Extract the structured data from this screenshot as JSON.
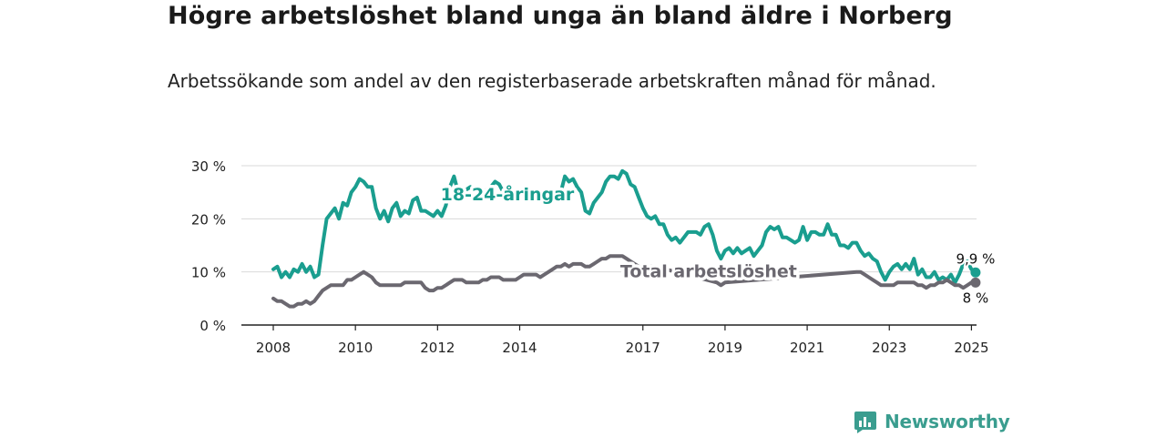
{
  "title": "Högre arbetslöshet bland unga än bland äldre i Norberg",
  "subtitle": "Arbetssökande som andel av den registerbaserade arbetskraften månad för månad.",
  "brand": "Newsworthy",
  "colors": {
    "youth": "#1a9e8f",
    "total": "#6b6870",
    "grid": "#d9d9d9",
    "axis": "#222222"
  },
  "chart_data": {
    "type": "line",
    "ylim": [
      0,
      30
    ],
    "xlim": [
      2008,
      2025.9
    ],
    "y_ticks": [
      {
        "v": 0,
        "label": "0 %"
      },
      {
        "v": 10,
        "label": "10 %"
      },
      {
        "v": 20,
        "label": "20 %"
      },
      {
        "v": 30,
        "label": "30 %"
      }
    ],
    "x_ticks": [
      {
        "v": 2008,
        "label": "2008"
      },
      {
        "v": 2010,
        "label": "2010"
      },
      {
        "v": 2012,
        "label": "2012"
      },
      {
        "v": 2014,
        "label": "2014"
      },
      {
        "v": 2017,
        "label": "2017"
      },
      {
        "v": 2019,
        "label": "2019"
      },
      {
        "v": 2021,
        "label": "2021"
      },
      {
        "v": 2023,
        "label": "2023"
      },
      {
        "v": 2025,
        "label": "2025"
      }
    ],
    "series": [
      {
        "name": "18-24-åringar",
        "color": "#1a9e8f",
        "points": [
          [
            2008.0,
            10.5
          ],
          [
            2008.1,
            11.0
          ],
          [
            2008.2,
            9.0
          ],
          [
            2008.3,
            10.0
          ],
          [
            2008.4,
            9.0
          ],
          [
            2008.5,
            10.5
          ],
          [
            2008.6,
            10.0
          ],
          [
            2008.7,
            11.5
          ],
          [
            2008.8,
            10.0
          ],
          [
            2008.9,
            11.0
          ],
          [
            2009.0,
            9.0
          ],
          [
            2009.1,
            9.5
          ],
          [
            2009.2,
            15.0
          ],
          [
            2009.3,
            20.0
          ],
          [
            2009.4,
            21.0
          ],
          [
            2009.5,
            22.0
          ],
          [
            2009.6,
            20.0
          ],
          [
            2009.7,
            23.0
          ],
          [
            2009.8,
            22.5
          ],
          [
            2009.9,
            25.0
          ],
          [
            2010.0,
            26.0
          ],
          [
            2010.1,
            27.5
          ],
          [
            2010.2,
            27.0
          ],
          [
            2010.3,
            26.0
          ],
          [
            2010.4,
            26.0
          ],
          [
            2010.5,
            22.0
          ],
          [
            2010.6,
            20.0
          ],
          [
            2010.7,
            21.5
          ],
          [
            2010.8,
            19.5
          ],
          [
            2010.9,
            22.0
          ],
          [
            2011.0,
            23.0
          ],
          [
            2011.1,
            20.5
          ],
          [
            2011.2,
            21.5
          ],
          [
            2011.3,
            21.0
          ],
          [
            2011.4,
            23.5
          ],
          [
            2011.5,
            24.0
          ],
          [
            2011.6,
            21.5
          ],
          [
            2011.7,
            21.5
          ],
          [
            2011.8,
            21.0
          ],
          [
            2011.9,
            20.5
          ],
          [
            2012.0,
            21.5
          ],
          [
            2012.1,
            20.5
          ],
          [
            2012.2,
            22.5
          ],
          [
            2012.3,
            26.0
          ],
          [
            2012.4,
            28.0
          ],
          [
            2012.5,
            25.0
          ],
          [
            2012.6,
            24.5
          ],
          [
            2012.7,
            25.5
          ],
          [
            2012.8,
            26.0
          ],
          [
            2012.9,
            25.0
          ],
          [
            2013.0,
            24.0
          ],
          [
            2013.1,
            24.5
          ],
          [
            2013.2,
            25.5
          ],
          [
            2013.3,
            26.0
          ],
          [
            2013.4,
            27.0
          ],
          [
            2013.5,
            26.5
          ],
          [
            2013.6,
            25.0
          ],
          [
            2013.7,
            24.0
          ],
          [
            2013.8,
            23.5
          ],
          [
            2013.9,
            24.0
          ],
          [
            2014.0,
            23.5
          ],
          [
            2014.2,
            24.0
          ],
          [
            2014.4,
            24.5
          ],
          [
            2014.6,
            24.0
          ],
          [
            2014.8,
            23.5
          ],
          [
            2015.0,
            25.0
          ],
          [
            2015.1,
            28.0
          ],
          [
            2015.2,
            27.0
          ],
          [
            2015.3,
            27.5
          ],
          [
            2015.4,
            26.0
          ],
          [
            2015.5,
            25.0
          ],
          [
            2015.6,
            21.5
          ],
          [
            2015.7,
            21.0
          ],
          [
            2015.8,
            23.0
          ],
          [
            2016.0,
            25.0
          ],
          [
            2016.1,
            27.0
          ],
          [
            2016.2,
            28.0
          ],
          [
            2016.3,
            28.0
          ],
          [
            2016.4,
            27.5
          ],
          [
            2016.5,
            29.0
          ],
          [
            2016.6,
            28.5
          ],
          [
            2016.7,
            26.5
          ],
          [
            2016.8,
            26.0
          ],
          [
            2016.9,
            24.0
          ],
          [
            2017.0,
            22.0
          ],
          [
            2017.1,
            20.5
          ],
          [
            2017.2,
            20.0
          ],
          [
            2017.3,
            20.5
          ],
          [
            2017.4,
            19.0
          ],
          [
            2017.5,
            19.0
          ],
          [
            2017.6,
            17.0
          ],
          [
            2017.7,
            16.0
          ],
          [
            2017.8,
            16.5
          ],
          [
            2017.9,
            15.5
          ],
          [
            2018.0,
            16.5
          ],
          [
            2018.1,
            17.5
          ],
          [
            2018.2,
            17.5
          ],
          [
            2018.3,
            17.5
          ],
          [
            2018.4,
            17.0
          ],
          [
            2018.5,
            18.5
          ],
          [
            2018.6,
            19.0
          ],
          [
            2018.7,
            17.0
          ],
          [
            2018.8,
            14.0
          ],
          [
            2018.9,
            12.5
          ],
          [
            2019.0,
            14.0
          ],
          [
            2019.1,
            14.5
          ],
          [
            2019.2,
            13.5
          ],
          [
            2019.3,
            14.5
          ],
          [
            2019.4,
            13.5
          ],
          [
            2019.5,
            14.0
          ],
          [
            2019.6,
            14.5
          ],
          [
            2019.7,
            13.0
          ],
          [
            2019.8,
            14.0
          ],
          [
            2019.9,
            15.0
          ],
          [
            2020.0,
            17.5
          ],
          [
            2020.1,
            18.5
          ],
          [
            2020.2,
            18.0
          ],
          [
            2020.3,
            18.5
          ],
          [
            2020.4,
            16.5
          ],
          [
            2020.5,
            16.5
          ],
          [
            2020.6,
            16.0
          ],
          [
            2020.7,
            15.5
          ],
          [
            2020.8,
            16.0
          ],
          [
            2020.9,
            18.5
          ],
          [
            2021.0,
            16.0
          ],
          [
            2021.1,
            17.5
          ],
          [
            2021.2,
            17.5
          ],
          [
            2021.3,
            17.0
          ],
          [
            2021.4,
            17.0
          ],
          [
            2021.5,
            19.0
          ],
          [
            2021.6,
            17.0
          ],
          [
            2021.7,
            17.0
          ],
          [
            2021.8,
            15.0
          ],
          [
            2021.9,
            15.0
          ],
          [
            2022.0,
            14.5
          ],
          [
            2022.1,
            15.5
          ],
          [
            2022.2,
            15.5
          ],
          [
            2022.3,
            14.0
          ],
          [
            2022.4,
            13.0
          ],
          [
            2022.5,
            13.5
          ],
          [
            2022.6,
            12.5
          ],
          [
            2022.7,
            12.0
          ],
          [
            2022.8,
            10.0
          ],
          [
            2022.9,
            8.5
          ],
          [
            2023.0,
            10.0
          ],
          [
            2023.1,
            11.0
          ],
          [
            2023.2,
            11.5
          ],
          [
            2023.3,
            10.5
          ],
          [
            2023.4,
            11.5
          ],
          [
            2023.5,
            10.5
          ],
          [
            2023.6,
            12.5
          ],
          [
            2023.7,
            9.5
          ],
          [
            2023.8,
            10.5
          ],
          [
            2023.9,
            9.0
          ],
          [
            2024.0,
            9.0
          ],
          [
            2024.1,
            10.0
          ],
          [
            2024.2,
            8.5
          ],
          [
            2024.3,
            9.0
          ],
          [
            2024.4,
            8.5
          ],
          [
            2024.5,
            9.5
          ],
          [
            2024.6,
            8.0
          ],
          [
            2024.7,
            9.5
          ],
          [
            2024.8,
            11.5
          ],
          [
            2024.9,
            12.0
          ],
          [
            2025.0,
            10.5
          ],
          [
            2025.1,
            9.9
          ]
        ],
        "end_label": "9,9 %",
        "label_at": [
          2013.7,
          24.5
        ]
      },
      {
        "name": "Total arbetslöshet",
        "color": "#6b6870",
        "points": [
          [
            2008.0,
            5.0
          ],
          [
            2008.1,
            4.5
          ],
          [
            2008.2,
            4.5
          ],
          [
            2008.3,
            4.0
          ],
          [
            2008.4,
            3.5
          ],
          [
            2008.5,
            3.5
          ],
          [
            2008.6,
            4.0
          ],
          [
            2008.7,
            4.0
          ],
          [
            2008.8,
            4.5
          ],
          [
            2008.9,
            4.0
          ],
          [
            2009.0,
            4.5
          ],
          [
            2009.1,
            5.5
          ],
          [
            2009.2,
            6.5
          ],
          [
            2009.3,
            7.0
          ],
          [
            2009.4,
            7.5
          ],
          [
            2009.5,
            7.5
          ],
          [
            2009.6,
            7.5
          ],
          [
            2009.7,
            7.5
          ],
          [
            2009.8,
            8.5
          ],
          [
            2009.9,
            8.5
          ],
          [
            2010.0,
            9.0
          ],
          [
            2010.1,
            9.5
          ],
          [
            2010.2,
            10.0
          ],
          [
            2010.3,
            9.5
          ],
          [
            2010.4,
            9.0
          ],
          [
            2010.5,
            8.0
          ],
          [
            2010.6,
            7.5
          ],
          [
            2010.7,
            7.5
          ],
          [
            2010.8,
            7.5
          ],
          [
            2010.9,
            7.5
          ],
          [
            2011.0,
            7.5
          ],
          [
            2011.1,
            7.5
          ],
          [
            2011.2,
            8.0
          ],
          [
            2011.3,
            8.0
          ],
          [
            2011.4,
            8.0
          ],
          [
            2011.5,
            8.0
          ],
          [
            2011.6,
            8.0
          ],
          [
            2011.7,
            7.0
          ],
          [
            2011.8,
            6.5
          ],
          [
            2011.9,
            6.5
          ],
          [
            2012.0,
            7.0
          ],
          [
            2012.1,
            7.0
          ],
          [
            2012.2,
            7.5
          ],
          [
            2012.3,
            8.0
          ],
          [
            2012.4,
            8.5
          ],
          [
            2012.5,
            8.5
          ],
          [
            2012.6,
            8.5
          ],
          [
            2012.7,
            8.0
          ],
          [
            2012.8,
            8.0
          ],
          [
            2012.9,
            8.0
          ],
          [
            2013.0,
            8.0
          ],
          [
            2013.1,
            8.5
          ],
          [
            2013.2,
            8.5
          ],
          [
            2013.3,
            9.0
          ],
          [
            2013.4,
            9.0
          ],
          [
            2013.5,
            9.0
          ],
          [
            2013.6,
            8.5
          ],
          [
            2013.7,
            8.5
          ],
          [
            2013.8,
            8.5
          ],
          [
            2013.9,
            8.5
          ],
          [
            2014.0,
            9.0
          ],
          [
            2014.1,
            9.5
          ],
          [
            2014.2,
            9.5
          ],
          [
            2014.3,
            9.5
          ],
          [
            2014.4,
            9.5
          ],
          [
            2014.5,
            9.0
          ],
          [
            2014.6,
            9.5
          ],
          [
            2014.7,
            10.0
          ],
          [
            2014.8,
            10.5
          ],
          [
            2014.9,
            11.0
          ],
          [
            2015.0,
            11.0
          ],
          [
            2015.1,
            11.5
          ],
          [
            2015.2,
            11.0
          ],
          [
            2015.3,
            11.5
          ],
          [
            2015.4,
            11.5
          ],
          [
            2015.5,
            11.5
          ],
          [
            2015.6,
            11.0
          ],
          [
            2015.7,
            11.0
          ],
          [
            2015.8,
            11.5
          ],
          [
            2015.9,
            12.0
          ],
          [
            2016.0,
            12.5
          ],
          [
            2016.1,
            12.5
          ],
          [
            2016.2,
            13.0
          ],
          [
            2016.3,
            13.0
          ],
          [
            2016.4,
            13.0
          ],
          [
            2016.5,
            13.0
          ],
          [
            2016.6,
            12.5
          ],
          [
            2016.7,
            12.0
          ],
          [
            2016.8,
            11.5
          ],
          [
            2016.9,
            11.0
          ],
          [
            2017.0,
            10.5
          ],
          [
            2017.1,
            10.5
          ],
          [
            2017.2,
            11.0
          ],
          [
            2017.3,
            11.0
          ],
          [
            2018.8,
            8.0
          ],
          [
            2018.9,
            7.5
          ],
          [
            2019.0,
            8.0
          ],
          [
            2022.2,
            10.0
          ],
          [
            2022.3,
            10.0
          ],
          [
            2022.4,
            9.5
          ],
          [
            2022.5,
            9.0
          ],
          [
            2022.6,
            8.5
          ],
          [
            2022.7,
            8.0
          ],
          [
            2022.8,
            7.5
          ],
          [
            2022.9,
            7.5
          ],
          [
            2023.0,
            7.5
          ],
          [
            2023.1,
            7.5
          ],
          [
            2023.2,
            8.0
          ],
          [
            2023.3,
            8.0
          ],
          [
            2023.4,
            8.0
          ],
          [
            2023.5,
            8.0
          ],
          [
            2023.6,
            8.0
          ],
          [
            2023.7,
            7.5
          ],
          [
            2023.8,
            7.5
          ],
          [
            2023.9,
            7.0
          ],
          [
            2024.0,
            7.5
          ],
          [
            2024.1,
            7.5
          ],
          [
            2024.2,
            8.0
          ],
          [
            2024.3,
            8.0
          ],
          [
            2024.4,
            8.5
          ],
          [
            2024.5,
            8.0
          ],
          [
            2024.6,
            7.5
          ],
          [
            2024.7,
            7.5
          ],
          [
            2024.8,
            7.0
          ],
          [
            2024.9,
            7.5
          ],
          [
            2025.0,
            8.0
          ],
          [
            2025.1,
            8.0
          ]
        ],
        "end_label": "8 %",
        "label_at": [
          2018.6,
          10.0
        ]
      }
    ]
  }
}
